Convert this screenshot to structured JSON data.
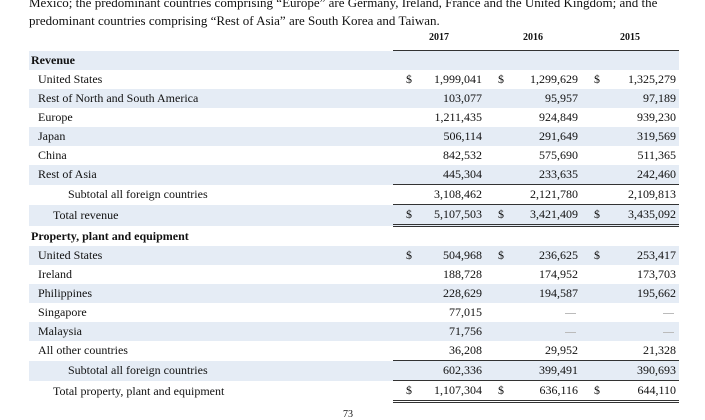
{
  "intro": {
    "line1": "Mexico; the predominant countries comprising “Europe” are Germany, Ireland, France and the United Kingdom; and the",
    "line2": "predominant countries comprising “Rest of Asia” are South Korea and Taiwan."
  },
  "years": [
    "2017",
    "2016",
    "2015"
  ],
  "currency_symbol": "$",
  "dash": "—",
  "revenue": {
    "heading": "Revenue",
    "rows": [
      {
        "label": "United States",
        "values": [
          "1,999,041",
          "1,299,629",
          "1,325,279"
        ],
        "dollar": true
      },
      {
        "label": "Rest of North and South America",
        "values": [
          "103,077",
          "95,957",
          "97,189"
        ]
      },
      {
        "label": "Europe",
        "values": [
          "1,211,435",
          "924,849",
          "939,230"
        ]
      },
      {
        "label": "Japan",
        "values": [
          "506,114",
          "291,649",
          "319,569"
        ]
      },
      {
        "label": "China",
        "values": [
          "842,532",
          "575,690",
          "511,365"
        ]
      },
      {
        "label": "Rest of Asia",
        "values": [
          "445,304",
          "233,635",
          "242,460"
        ]
      }
    ],
    "subtotal": {
      "label": "Subtotal all foreign countries",
      "values": [
        "3,108,462",
        "2,121,780",
        "2,109,813"
      ]
    },
    "total": {
      "label": "Total revenue",
      "values": [
        "5,107,503",
        "3,421,409",
        "3,435,092"
      ]
    }
  },
  "ppe": {
    "heading": "Property, plant and equipment",
    "rows": [
      {
        "label": "United States",
        "values": [
          "504,968",
          "236,625",
          "253,417"
        ],
        "dollar": true
      },
      {
        "label": "Ireland",
        "values": [
          "188,728",
          "174,952",
          "173,703"
        ]
      },
      {
        "label": "Philippines",
        "values": [
          "228,629",
          "194,587",
          "195,662"
        ]
      },
      {
        "label": "Singapore",
        "values": [
          "77,015",
          null,
          null
        ]
      },
      {
        "label": "Malaysia",
        "values": [
          "71,756",
          null,
          null
        ]
      },
      {
        "label": "All other countries",
        "values": [
          "36,208",
          "29,952",
          "21,328"
        ]
      }
    ],
    "subtotal": {
      "label": "Subtotal all foreign countries",
      "values": [
        "602,336",
        "399,491",
        "390,693"
      ]
    },
    "total": {
      "label": "Total property, plant and equipment",
      "values": [
        "1,107,304",
        "636,116",
        "644,110"
      ]
    }
  },
  "page_number": "73"
}
